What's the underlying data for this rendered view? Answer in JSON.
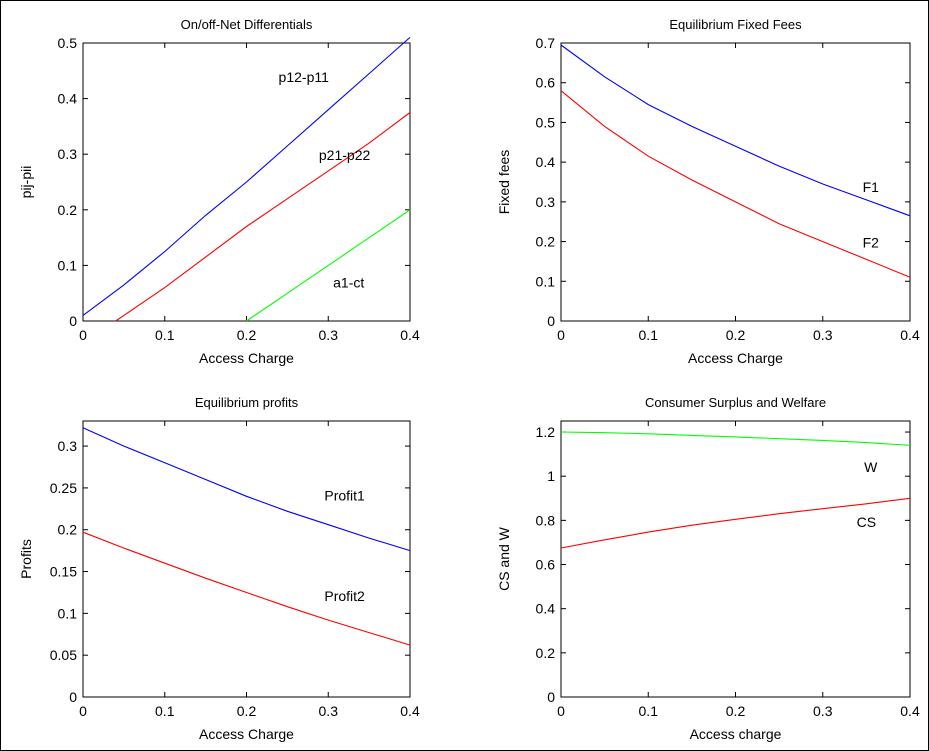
{
  "chart_data": [
    {
      "type": "line",
      "title": "On/off-Net Differentials",
      "xlabel": "Access Charge",
      "ylabel": "pij-pii",
      "xlim": [
        0,
        0.4
      ],
      "ylim": [
        0,
        0.5
      ],
      "xticks": [
        0,
        0.1,
        0.2,
        0.3,
        0.4
      ],
      "yticks": [
        0,
        0.1,
        0.2,
        0.3,
        0.4,
        0.5
      ],
      "series": [
        {
          "name": "p12-p11",
          "color": "#0000ff",
          "x": [
            0,
            0.05,
            0.1,
            0.15,
            0.2,
            0.25,
            0.3,
            0.35,
            0.4
          ],
          "y": [
            0.01,
            0.065,
            0.125,
            0.19,
            0.25,
            0.315,
            0.38,
            0.445,
            0.51
          ]
        },
        {
          "name": "p21-p22",
          "color": "#ff0000",
          "x": [
            0.04,
            0.1,
            0.15,
            0.2,
            0.25,
            0.3,
            0.35,
            0.4
          ],
          "y": [
            0,
            0.06,
            0.115,
            0.17,
            0.22,
            0.27,
            0.32,
            0.375
          ]
        },
        {
          "name": "a1-ct",
          "color": "#00ff00",
          "x": [
            0.2,
            0.3,
            0.4
          ],
          "y": [
            0,
            0.1,
            0.2
          ]
        }
      ],
      "labels": [
        {
          "text": "p12-p11",
          "x": 0.27,
          "y": 0.43
        },
        {
          "text": "p21-p22",
          "x": 0.32,
          "y": 0.29
        },
        {
          "text": "a1-ct",
          "x": 0.325,
          "y": 0.06
        }
      ]
    },
    {
      "type": "line",
      "title": "Equilibrium Fixed Fees",
      "xlabel": "Access Charge",
      "ylabel": "Fixed fees",
      "xlim": [
        0,
        0.4
      ],
      "ylim": [
        0,
        0.7
      ],
      "xticks": [
        0,
        0.1,
        0.2,
        0.3,
        0.4
      ],
      "yticks": [
        0,
        0.1,
        0.2,
        0.3,
        0.4,
        0.5,
        0.6,
        0.7
      ],
      "series": [
        {
          "name": "F1",
          "color": "#0000ff",
          "x": [
            0,
            0.05,
            0.1,
            0.15,
            0.2,
            0.25,
            0.3,
            0.35,
            0.4
          ],
          "y": [
            0.695,
            0.615,
            0.545,
            0.49,
            0.44,
            0.39,
            0.345,
            0.305,
            0.265
          ]
        },
        {
          "name": "F2",
          "color": "#ff0000",
          "x": [
            0,
            0.05,
            0.1,
            0.15,
            0.2,
            0.25,
            0.3,
            0.35,
            0.4
          ],
          "y": [
            0.58,
            0.49,
            0.415,
            0.355,
            0.3,
            0.245,
            0.2,
            0.155,
            0.11
          ]
        }
      ],
      "labels": [
        {
          "text": "F1",
          "x": 0.355,
          "y": 0.325
        },
        {
          "text": "F2",
          "x": 0.355,
          "y": 0.185
        }
      ]
    },
    {
      "type": "line",
      "title": "Equilibrium profits",
      "xlabel": "Access Charge",
      "ylabel": "Profits",
      "xlim": [
        0,
        0.4
      ],
      "ylim": [
        0,
        0.33
      ],
      "xticks": [
        0,
        0.1,
        0.2,
        0.3,
        0.4
      ],
      "yticks": [
        0,
        0.05,
        0.1,
        0.15,
        0.2,
        0.25,
        0.3
      ],
      "series": [
        {
          "name": "Profit1",
          "color": "#0000ff",
          "x": [
            0,
            0.05,
            0.1,
            0.15,
            0.2,
            0.25,
            0.3,
            0.35,
            0.4
          ],
          "y": [
            0.322,
            0.3,
            0.28,
            0.26,
            0.24,
            0.222,
            0.206,
            0.19,
            0.175
          ]
        },
        {
          "name": "Profit2",
          "color": "#ff0000",
          "x": [
            0,
            0.05,
            0.1,
            0.15,
            0.2,
            0.25,
            0.3,
            0.35,
            0.4
          ],
          "y": [
            0.197,
            0.178,
            0.16,
            0.142,
            0.125,
            0.108,
            0.092,
            0.077,
            0.062
          ]
        }
      ],
      "labels": [
        {
          "text": "Profit1",
          "x": 0.32,
          "y": 0.235
        },
        {
          "text": "Profit2",
          "x": 0.32,
          "y": 0.115
        }
      ]
    },
    {
      "type": "line",
      "title": "Consumer Surplus and Welfare",
      "xlabel": "Access charge",
      "ylabel": "CS and W",
      "xlim": [
        0,
        0.4
      ],
      "ylim": [
        0,
        1.25
      ],
      "xticks": [
        0,
        0.1,
        0.2,
        0.3,
        0.4
      ],
      "yticks": [
        0,
        0.2,
        0.4,
        0.6,
        0.8,
        1,
        1.2
      ],
      "series": [
        {
          "name": "W",
          "color": "#00ff00",
          "x": [
            0,
            0.05,
            0.1,
            0.15,
            0.2,
            0.25,
            0.3,
            0.35,
            0.4
          ],
          "y": [
            1.2,
            1.197,
            1.192,
            1.185,
            1.178,
            1.17,
            1.162,
            1.152,
            1.14
          ]
        },
        {
          "name": "CS",
          "color": "#ff0000",
          "x": [
            0,
            0.05,
            0.1,
            0.15,
            0.2,
            0.25,
            0.3,
            0.35,
            0.4
          ],
          "y": [
            0.675,
            0.712,
            0.747,
            0.778,
            0.805,
            0.83,
            0.853,
            0.875,
            0.9
          ]
        }
      ],
      "labels": [
        {
          "text": "W",
          "x": 0.355,
          "y": 1.02
        },
        {
          "text": "CS",
          "x": 0.35,
          "y": 0.77
        }
      ]
    }
  ]
}
